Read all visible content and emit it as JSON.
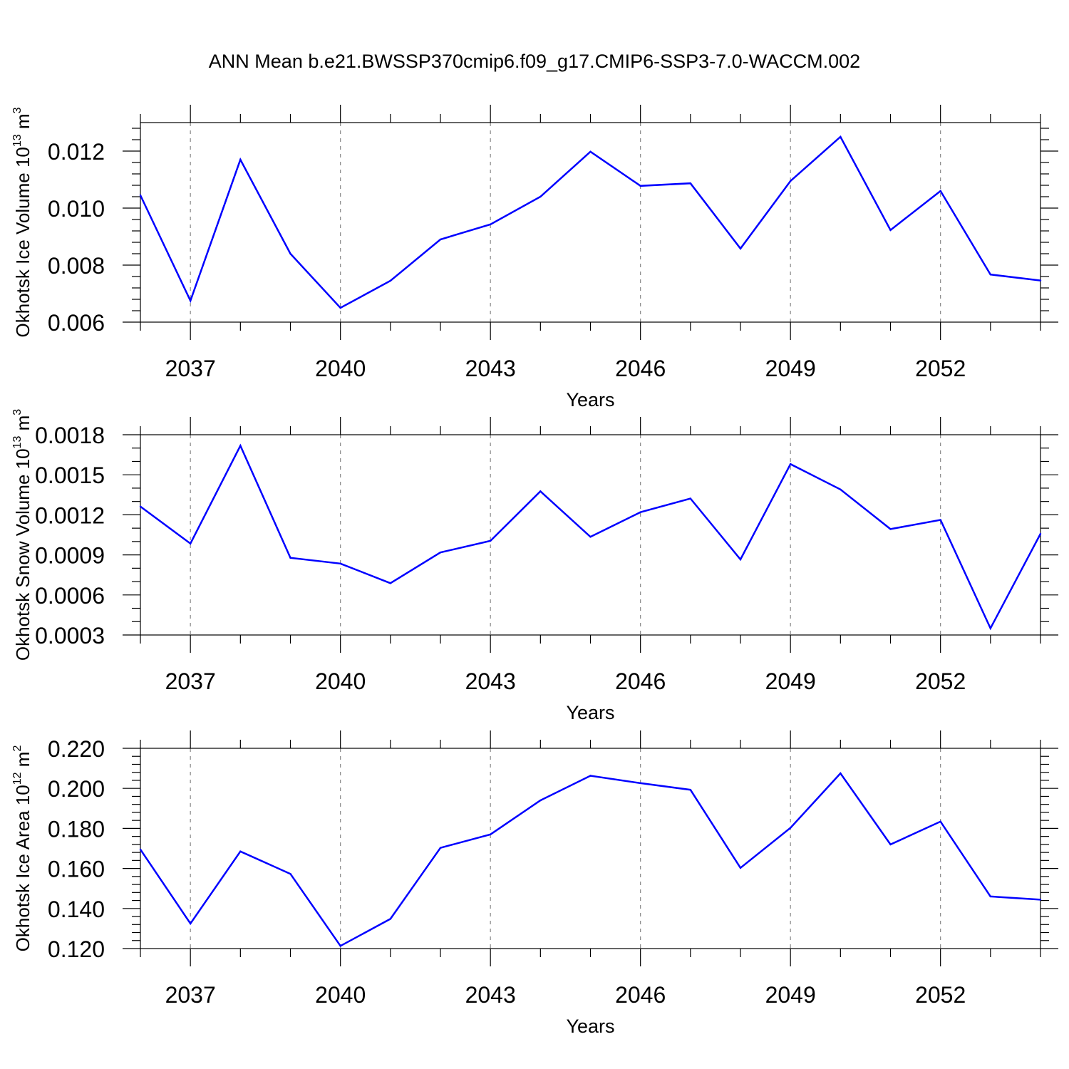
{
  "figure": {
    "title": "ANN Mean b.e21.BWSSP370cmip6.f09_g17.CMIP6-SSP3-7.0-WACCM.002"
  },
  "chart_data": [
    {
      "type": "line",
      "xlabel": "Years",
      "ylabel_main": "Okhotsk Ice Volume 10",
      "ylabel_exp": "13",
      "ylabel_unit": "m",
      "ylabel_unit_exp": "3",
      "xlim": [
        2036,
        2054
      ],
      "ylim": [
        0.006,
        0.013
      ],
      "xticks": [
        2037,
        2040,
        2043,
        2046,
        2049,
        2052
      ],
      "yticks": [
        0.006,
        0.008,
        0.01,
        0.012
      ],
      "ytick_labels": [
        "0.006",
        "0.008",
        "0.010",
        "0.012"
      ],
      "ytick_minor_step": 0.0004,
      "line_color": "#0000ff",
      "x": [
        2036,
        2037,
        2038,
        2039,
        2040,
        2041,
        2042,
        2043,
        2044,
        2045,
        2046,
        2047,
        2048,
        2049,
        2050,
        2051,
        2052,
        2053,
        2054
      ],
      "values": [
        0.01045,
        0.00675,
        0.0117,
        0.0084,
        0.0065,
        0.00745,
        0.0089,
        0.00943,
        0.0104,
        0.01198,
        0.01078,
        0.01087,
        0.00858,
        0.01095,
        0.0125,
        0.00923,
        0.0106,
        0.00767,
        0.00746
      ]
    },
    {
      "type": "line",
      "xlabel": "Years",
      "ylabel_main": "Okhotsk Snow Volume 10",
      "ylabel_exp": "13",
      "ylabel_unit": "m",
      "ylabel_unit_exp": "3",
      "xlim": [
        2036,
        2054
      ],
      "ylim": [
        0.0003,
        0.0018
      ],
      "xticks": [
        2037,
        2040,
        2043,
        2046,
        2049,
        2052
      ],
      "yticks": [
        0.0003,
        0.0006,
        0.0009,
        0.0012,
        0.0015,
        0.0018
      ],
      "ytick_labels": [
        "0.0003",
        "0.0006",
        "0.0009",
        "0.0012",
        "0.0015",
        "0.0018"
      ],
      "ytick_minor_step": 0.0001,
      "line_color": "#0000ff",
      "x": [
        2036,
        2037,
        2038,
        2039,
        2040,
        2041,
        2042,
        2043,
        2044,
        2045,
        2046,
        2047,
        2048,
        2049,
        2050,
        2051,
        2052,
        2053,
        2054
      ],
      "values": [
        0.001262,
        0.000985,
        0.001718,
        0.000878,
        0.000835,
        0.000688,
        0.000918,
        0.001005,
        0.001376,
        0.001035,
        0.00122,
        0.001322,
        0.000866,
        0.00158,
        0.00139,
        0.001093,
        0.001162,
        0.00035,
        0.001058
      ]
    },
    {
      "type": "line",
      "xlabel": "Years",
      "ylabel_main": "Okhotsk Ice Area 10",
      "ylabel_exp": "12",
      "ylabel_unit": "m",
      "ylabel_unit_exp": "2",
      "xlim": [
        2036,
        2054
      ],
      "ylim": [
        0.12,
        0.22
      ],
      "xticks": [
        2037,
        2040,
        2043,
        2046,
        2049,
        2052
      ],
      "yticks": [
        0.12,
        0.14,
        0.16,
        0.18,
        0.2,
        0.22
      ],
      "ytick_labels": [
        "0.120",
        "0.140",
        "0.160",
        "0.180",
        "0.200",
        "0.220"
      ],
      "ytick_minor_step": 0.004,
      "line_color": "#0000ff",
      "x": [
        2036,
        2037,
        2038,
        2039,
        2040,
        2041,
        2042,
        2043,
        2044,
        2045,
        2046,
        2047,
        2048,
        2049,
        2050,
        2051,
        2052,
        2053,
        2054
      ],
      "values": [
        0.1695,
        0.1325,
        0.1685,
        0.1573,
        0.1213,
        0.1348,
        0.1703,
        0.177,
        0.194,
        0.2063,
        0.2026,
        0.1993,
        0.1603,
        0.1803,
        0.2075,
        0.172,
        0.1834,
        0.146,
        0.1444
      ]
    }
  ]
}
